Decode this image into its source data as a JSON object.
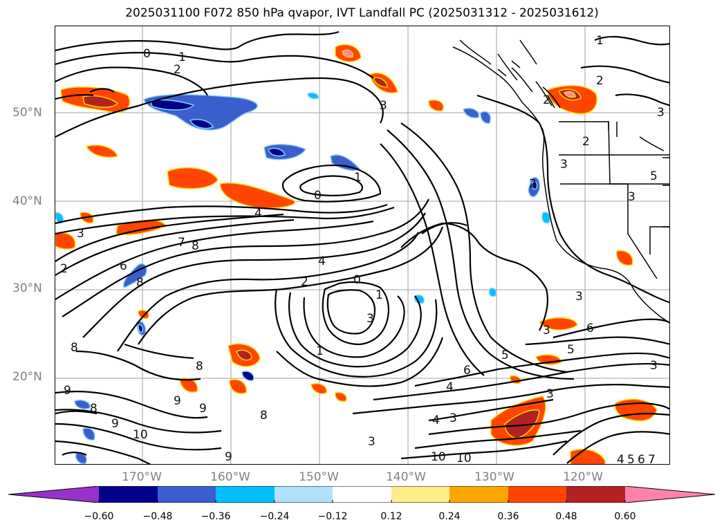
{
  "title": "2025031100 F072 850 hPa qvapor, IVT Landfall PC (2025031312 - 2025031612)",
  "lat_labels": [
    "50°N",
    "40°N",
    "30°N",
    "20°N"
  ],
  "lon_labels": [
    "170°W",
    "160°W",
    "150°W",
    "140°W",
    "130°W",
    "120°W"
  ],
  "colorbar": {
    "colors": [
      "#9932cc",
      "#00008b",
      "#3a5fcd",
      "#00bfff",
      "#b0e2ff",
      "#ffffff",
      "#ffec8b",
      "#ffa500",
      "#ff4500",
      "#b22222",
      "#ff82ab"
    ],
    "ticks": [
      "−0.60",
      "−0.48",
      "−0.36",
      "−0.24",
      "−0.12",
      "0.12",
      "0.24",
      "0.36",
      "0.48",
      "0.60"
    ]
  },
  "contour_labels": [
    "0",
    "1",
    "2",
    "3",
    "1",
    "2",
    "3",
    "2",
    "1",
    "0",
    "4",
    "3",
    "7",
    "8",
    "6",
    "8",
    "2",
    "4",
    "2",
    "0",
    "1",
    "3",
    "1",
    "8",
    "8",
    "9",
    "9",
    "9",
    "8",
    "9",
    "10",
    "9",
    "8",
    "2",
    "3",
    "2",
    "3",
    "5",
    "3",
    "3",
    "6",
    "3",
    "5",
    "5",
    "6",
    "4",
    "3",
    "3",
    "4",
    "10",
    "10",
    "4",
    "5",
    "6",
    "7",
    "3"
  ]
}
